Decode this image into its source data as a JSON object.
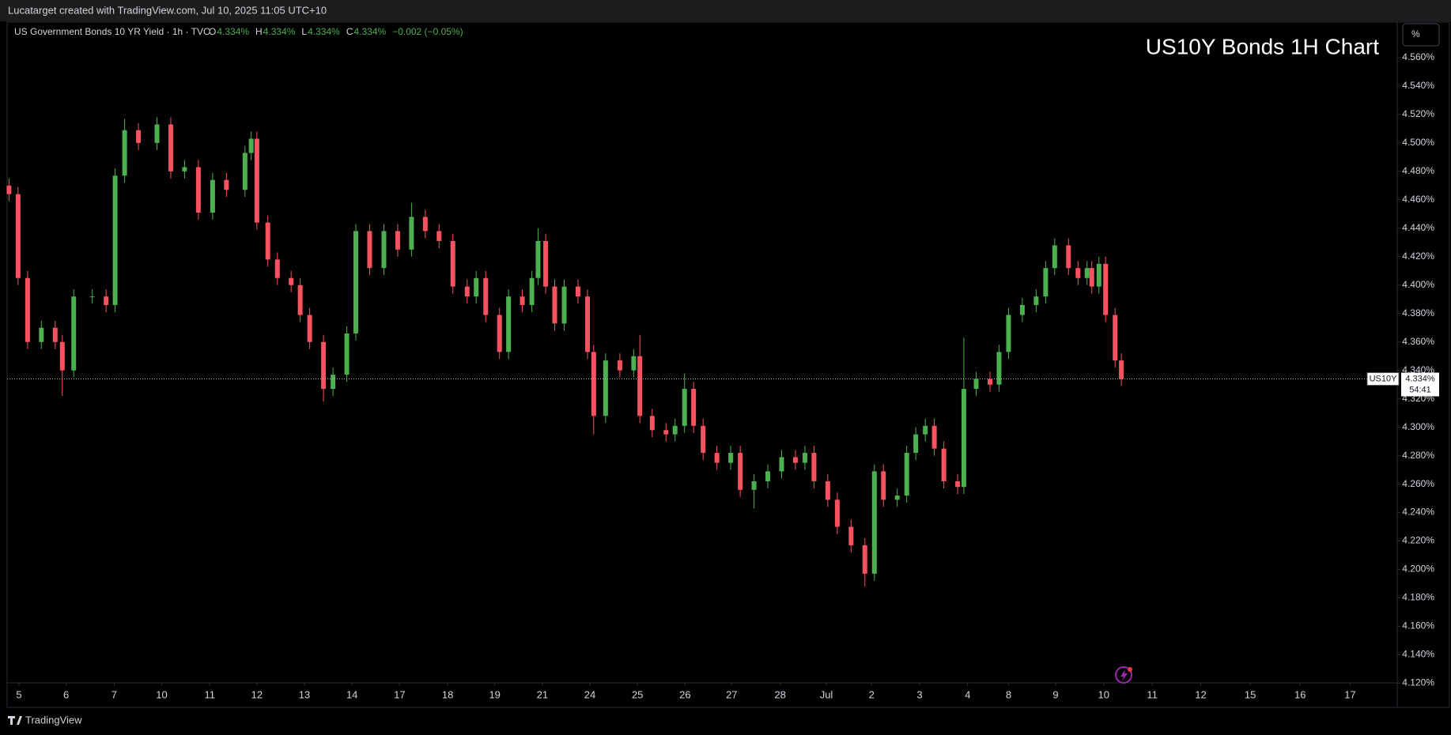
{
  "header": {
    "credit": "Lucatarget created with TradingView.com, Jul 10, 2025 11:05 UTC+10"
  },
  "chart_data": {
    "type": "candlestick",
    "title": "US10Y Bonds 1H Chart",
    "symbol": "US Government Bonds 10 YR Yield · 1h · TVC",
    "ohlc_legend": [
      {
        "key": "O",
        "value": "4.334%"
      },
      {
        "key": "H",
        "value": "4.334%"
      },
      {
        "key": "L",
        "value": "4.334%"
      },
      {
        "key": "C",
        "value": "4.334%"
      }
    ],
    "change": "−0.002 (−0.05%)",
    "unit_button": "%",
    "last_price": {
      "symbol": "US10Y",
      "value": 4.334,
      "label": "4.334%",
      "countdown": "54:41"
    },
    "x": [
      -0.21,
      -0.02,
      0.18,
      0.47,
      0.76,
      0.91,
      1.15,
      1.54,
      1.83,
      2.02,
      2.22,
      2.51,
      2.9,
      3.19,
      3.48,
      3.77,
      4.07,
      4.36,
      4.75,
      4.88,
      5.0,
      5.23,
      5.43,
      5.72,
      5.91,
      6.11,
      6.4,
      6.6,
      6.89,
      7.08,
      7.37,
      7.67,
      7.96,
      8.25,
      8.54,
      8.83,
      9.12,
      9.42,
      9.61,
      9.81,
      10.1,
      10.29,
      10.58,
      10.78,
      10.91,
      11.07,
      11.26,
      11.46,
      11.75,
      11.95,
      12.08,
      12.33,
      12.63,
      12.92,
      13.05,
      13.31,
      13.6,
      13.79,
      13.99,
      14.18,
      14.38,
      14.67,
      14.96,
      15.16,
      15.45,
      15.74,
      16.03,
      16.32,
      16.52,
      16.71,
      17.0,
      17.2,
      17.49,
      17.78,
      17.98,
      18.17,
      18.46,
      18.66,
      18.85,
      19.05,
      19.24,
      19.44,
      19.73,
      19.86,
      20.12,
      20.41,
      20.6,
      20.8,
      21.09,
      21.38,
      21.58,
      21.77,
      22.06,
      22.26,
      22.45,
      22.55,
      22.7,
      22.84,
      23.04,
      23.17
    ],
    "open": [
      4.47,
      4.464,
      4.405,
      4.36,
      4.37,
      4.36,
      4.34,
      4.392,
      4.392,
      4.386,
      4.477,
      4.509,
      4.5,
      4.513,
      4.48,
      4.483,
      4.451,
      4.474,
      4.467,
      4.493,
      4.503,
      4.444,
      4.418,
      4.405,
      4.4,
      4.379,
      4.36,
      4.327,
      4.337,
      4.366,
      4.438,
      4.412,
      4.438,
      4.425,
      4.448,
      4.438,
      4.431,
      4.399,
      4.392,
      4.405,
      4.379,
      4.353,
      4.392,
      4.386,
      4.405,
      4.431,
      4.399,
      4.373,
      4.399,
      4.392,
      4.353,
      4.308,
      4.347,
      4.34,
      4.35,
      4.308,
      4.298,
      4.295,
      4.301,
      4.327,
      4.301,
      4.282,
      4.275,
      4.282,
      4.256,
      4.262,
      4.269,
      4.279,
      4.275,
      4.282,
      4.262,
      4.249,
      4.23,
      4.217,
      4.197,
      4.269,
      4.249,
      4.252,
      4.282,
      4.295,
      4.301,
      4.285,
      4.262,
      4.258,
      4.327,
      4.334,
      4.33,
      4.353,
      4.379,
      4.386,
      4.392,
      4.412,
      4.428,
      4.412,
      4.405,
      4.412,
      4.399,
      4.415,
      4.379,
      4.347
    ],
    "high": [
      4.475,
      4.469,
      4.41,
      4.375,
      4.375,
      4.365,
      4.397,
      4.397,
      4.397,
      4.482,
      4.517,
      4.514,
      4.518,
      4.518,
      4.488,
      4.488,
      4.479,
      4.479,
      4.498,
      4.508,
      4.508,
      4.449,
      4.423,
      4.41,
      4.405,
      4.384,
      4.365,
      4.342,
      4.371,
      4.443,
      4.443,
      4.443,
      4.443,
      4.458,
      4.453,
      4.443,
      4.436,
      4.404,
      4.41,
      4.41,
      4.384,
      4.397,
      4.397,
      4.41,
      4.44,
      4.436,
      4.404,
      4.404,
      4.404,
      4.397,
      4.358,
      4.352,
      4.352,
      4.355,
      4.365,
      4.313,
      4.303,
      4.306,
      4.338,
      4.332,
      4.306,
      4.287,
      4.287,
      4.287,
      4.267,
      4.274,
      4.284,
      4.284,
      4.287,
      4.287,
      4.267,
      4.254,
      4.235,
      4.222,
      4.274,
      4.274,
      4.257,
      4.287,
      4.3,
      4.306,
      4.306,
      4.29,
      4.267,
      4.363,
      4.339,
      4.339,
      4.358,
      4.384,
      4.391,
      4.397,
      4.417,
      4.433,
      4.433,
      4.417,
      4.417,
      4.417,
      4.42,
      4.42,
      4.384,
      4.352
    ],
    "low": [
      4.459,
      4.4,
      4.355,
      4.355,
      4.355,
      4.322,
      4.335,
      4.387,
      4.381,
      4.381,
      4.472,
      4.495,
      4.495,
      4.475,
      4.475,
      4.446,
      4.446,
      4.462,
      4.462,
      4.488,
      4.439,
      4.413,
      4.4,
      4.395,
      4.374,
      4.355,
      4.318,
      4.322,
      4.332,
      4.361,
      4.407,
      4.407,
      4.42,
      4.42,
      4.433,
      4.426,
      4.394,
      4.387,
      4.387,
      4.374,
      4.348,
      4.348,
      4.381,
      4.381,
      4.4,
      4.394,
      4.368,
      4.368,
      4.387,
      4.348,
      4.295,
      4.303,
      4.335,
      4.335,
      4.303,
      4.293,
      4.29,
      4.29,
      4.296,
      4.296,
      4.277,
      4.27,
      4.27,
      4.251,
      4.243,
      4.257,
      4.264,
      4.27,
      4.27,
      4.257,
      4.244,
      4.225,
      4.212,
      4.188,
      4.192,
      4.244,
      4.244,
      4.247,
      4.277,
      4.29,
      4.28,
      4.257,
      4.253,
      4.253,
      4.322,
      4.325,
      4.325,
      4.348,
      4.374,
      4.381,
      4.387,
      4.407,
      4.407,
      4.4,
      4.4,
      4.394,
      4.394,
      4.374,
      4.342,
      4.329
    ],
    "close": [
      4.464,
      4.405,
      4.36,
      4.37,
      4.36,
      4.34,
      4.392,
      4.392,
      4.386,
      4.477,
      4.509,
      4.5,
      4.513,
      4.48,
      4.483,
      4.451,
      4.474,
      4.467,
      4.493,
      4.503,
      4.444,
      4.418,
      4.405,
      4.4,
      4.379,
      4.36,
      4.327,
      4.337,
      4.366,
      4.438,
      4.412,
      4.438,
      4.425,
      4.448,
      4.438,
      4.431,
      4.399,
      4.392,
      4.405,
      4.379,
      4.353,
      4.392,
      4.386,
      4.405,
      4.431,
      4.399,
      4.373,
      4.399,
      4.392,
      4.353,
      4.308,
      4.347,
      4.34,
      4.35,
      4.308,
      4.298,
      4.295,
      4.301,
      4.327,
      4.301,
      4.282,
      4.275,
      4.282,
      4.256,
      4.262,
      4.269,
      4.279,
      4.275,
      4.282,
      4.262,
      4.249,
      4.23,
      4.217,
      4.197,
      4.269,
      4.249,
      4.252,
      4.282,
      4.295,
      4.301,
      4.285,
      4.262,
      4.258,
      4.327,
      4.334,
      4.33,
      4.353,
      4.379,
      4.386,
      4.392,
      4.412,
      4.428,
      4.412,
      4.405,
      4.412,
      4.399,
      4.415,
      4.379,
      4.347,
      4.334
    ],
    "up_color": "#4caf50",
    "down_color": "#f7525f",
    "xlim": [
      -0.25,
      28.97
    ],
    "xticks": [
      {
        "value": 0,
        "label": "5"
      },
      {
        "value": 0.99,
        "label": "6"
      },
      {
        "value": 2.0,
        "label": "7"
      },
      {
        "value": 3.0,
        "label": "10"
      },
      {
        "value": 4.01,
        "label": "11"
      },
      {
        "value": 5.0,
        "label": "12"
      },
      {
        "value": 6.0,
        "label": "13"
      },
      {
        "value": 7.0,
        "label": "14"
      },
      {
        "value": 8.0,
        "label": "17"
      },
      {
        "value": 9.01,
        "label": "18"
      },
      {
        "value": 10.0,
        "label": "19"
      },
      {
        "value": 11.0,
        "label": "21"
      },
      {
        "value": 12.0,
        "label": "24"
      },
      {
        "value": 13.0,
        "label": "25"
      },
      {
        "value": 14.0,
        "label": "26"
      },
      {
        "value": 14.98,
        "label": "27"
      },
      {
        "value": 16.0,
        "label": "28"
      },
      {
        "value": 16.97,
        "label": "Jul"
      },
      {
        "value": 17.92,
        "label": "2"
      },
      {
        "value": 18.93,
        "label": "3"
      },
      {
        "value": 19.94,
        "label": "4"
      },
      {
        "value": 20.8,
        "label": "8"
      },
      {
        "value": 21.79,
        "label": "9"
      },
      {
        "value": 22.8,
        "label": "10"
      },
      {
        "value": 23.82,
        "label": "11"
      },
      {
        "value": 24.84,
        "label": "12"
      },
      {
        "value": 25.88,
        "label": "15"
      },
      {
        "value": 26.93,
        "label": "16"
      },
      {
        "value": 27.98,
        "label": "17"
      }
    ],
    "ylim": [
      4.103,
      4.585
    ],
    "yticks": [
      {
        "value": 4.12,
        "label": "4.120%"
      },
      {
        "value": 4.14,
        "label": "4.140%"
      },
      {
        "value": 4.16,
        "label": "4.160%"
      },
      {
        "value": 4.18,
        "label": "4.180%"
      },
      {
        "value": 4.2,
        "label": "4.200%"
      },
      {
        "value": 4.22,
        "label": "4.220%"
      },
      {
        "value": 4.24,
        "label": "4.240%"
      },
      {
        "value": 4.26,
        "label": "4.260%"
      },
      {
        "value": 4.28,
        "label": "4.280%"
      },
      {
        "value": 4.3,
        "label": "4.300%"
      },
      {
        "value": 4.32,
        "label": "4.320%"
      },
      {
        "value": 4.34,
        "label": "4.340%"
      },
      {
        "value": 4.36,
        "label": "4.360%"
      },
      {
        "value": 4.38,
        "label": "4.380%"
      },
      {
        "value": 4.4,
        "label": "4.400%"
      },
      {
        "value": 4.42,
        "label": "4.420%"
      },
      {
        "value": 4.44,
        "label": "4.440%"
      },
      {
        "value": 4.46,
        "label": "4.460%"
      },
      {
        "value": 4.48,
        "label": "4.480%"
      },
      {
        "value": 4.5,
        "label": "4.500%"
      },
      {
        "value": 4.52,
        "label": "4.520%"
      },
      {
        "value": 4.54,
        "label": "4.540%"
      },
      {
        "value": 4.56,
        "label": "4.560%"
      }
    ],
    "grid": false
  },
  "footer": {
    "brand": "TradingView"
  }
}
